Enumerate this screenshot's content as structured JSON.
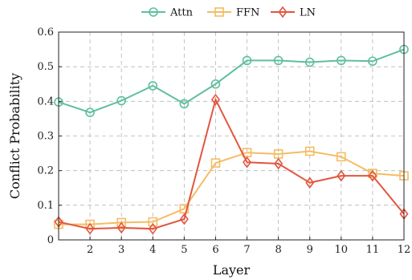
{
  "chart_data": {
    "type": "line",
    "title": "",
    "xlabel": "Layer",
    "ylabel": "Conflict Probability",
    "x": [
      1,
      2,
      3,
      4,
      5,
      6,
      7,
      8,
      9,
      10,
      11,
      12
    ],
    "x_ticks": [
      "2",
      "3",
      "4",
      "5",
      "6",
      "7",
      "8",
      "9",
      "10",
      "11",
      "12"
    ],
    "xlim": [
      1,
      12
    ],
    "ylim": [
      0,
      0.6
    ],
    "y_ticks": [
      "0",
      "0.1",
      "0.2",
      "0.3",
      "0.4",
      "0.5",
      "0.6"
    ],
    "grid": true,
    "legend_position": "top-center",
    "series": [
      {
        "name": "Attn",
        "color": "#5fbf9c",
        "marker": "circle",
        "values": [
          0.398,
          0.368,
          0.402,
          0.445,
          0.393,
          0.45,
          0.518,
          0.518,
          0.513,
          0.518,
          0.516,
          0.55
        ]
      },
      {
        "name": "FFN",
        "color": "#f5bc62",
        "marker": "square",
        "values": [
          0.045,
          0.045,
          0.05,
          0.052,
          0.09,
          0.222,
          0.252,
          0.248,
          0.256,
          0.24,
          0.192,
          0.185
        ]
      },
      {
        "name": "LN",
        "color": "#e2563f",
        "marker": "diamond",
        "values": [
          0.052,
          0.032,
          0.035,
          0.032,
          0.06,
          0.405,
          0.224,
          0.22,
          0.165,
          0.185,
          0.185,
          0.075
        ]
      }
    ]
  }
}
